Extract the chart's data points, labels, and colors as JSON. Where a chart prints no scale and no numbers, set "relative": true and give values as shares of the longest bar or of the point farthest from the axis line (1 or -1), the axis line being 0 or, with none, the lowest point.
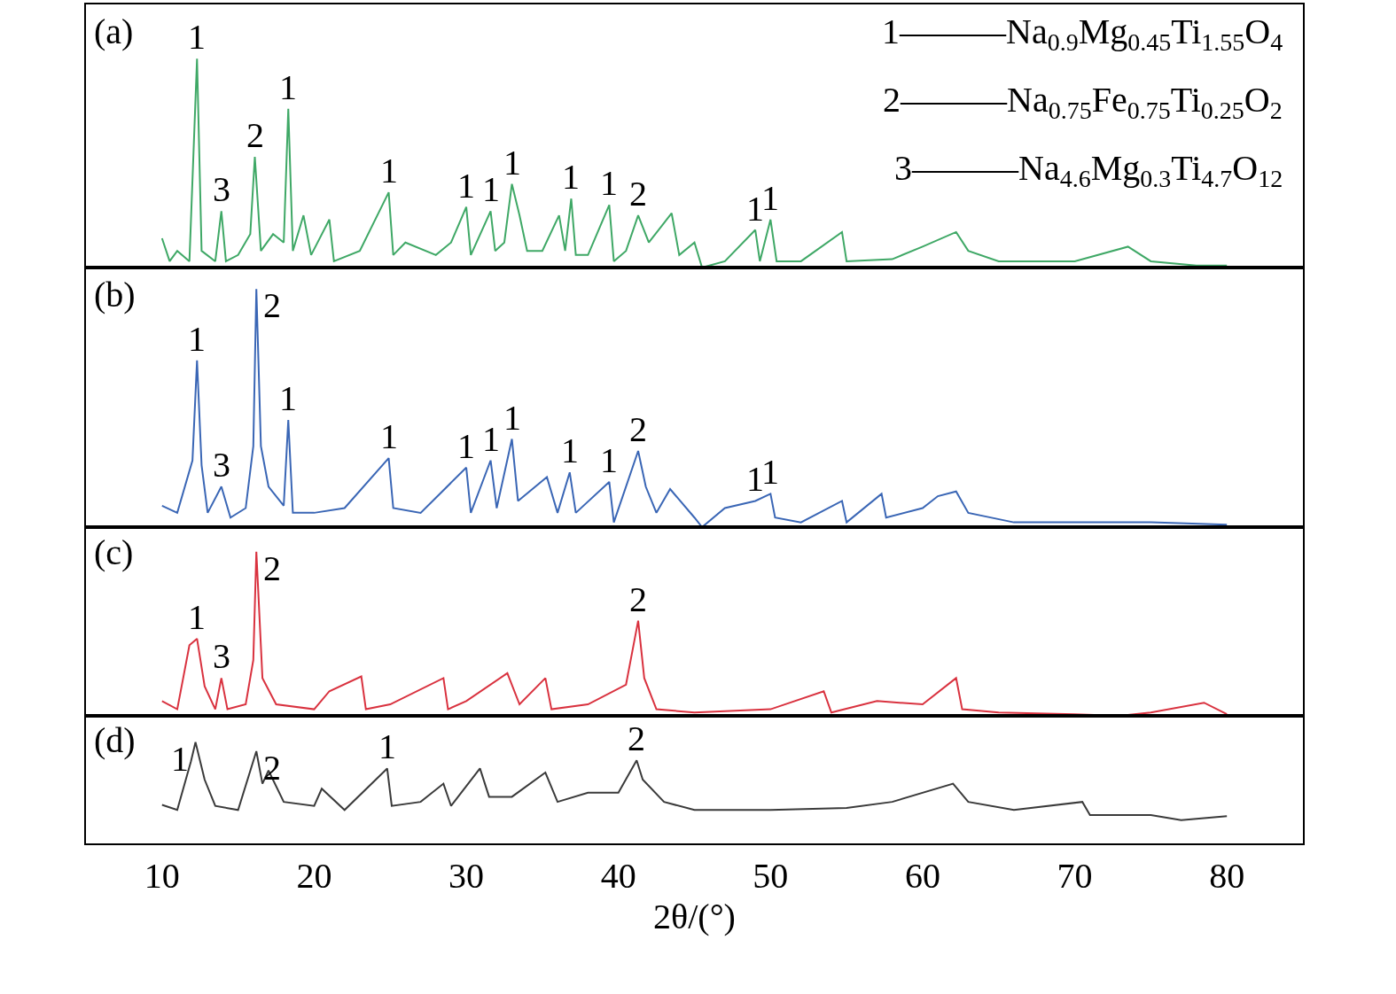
{
  "chart_data": [
    {
      "type": "line",
      "title": "(a)",
      "relative": true,
      "xlim": [
        5,
        85
      ],
      "xticks": [
        10,
        20,
        30,
        40,
        50,
        60,
        70,
        80
      ],
      "tick_labels": false,
      "grid": false,
      "x": [
        10,
        10.5,
        11,
        11.8,
        12.3,
        12.6,
        13.5,
        13.9,
        14.2,
        15,
        15.8,
        16.1,
        16.5,
        17.3,
        18,
        18.3,
        18.6,
        19.3,
        19.8,
        21,
        21.3,
        23,
        24.9,
        25.2,
        26,
        28,
        29,
        30,
        30.3,
        31.6,
        31.9,
        32.5,
        33,
        33.5,
        34,
        35,
        36.1,
        36.5,
        36.9,
        37.2,
        38,
        39.4,
        39.7,
        40.5,
        41.3,
        42,
        43.5,
        44,
        45,
        45.5,
        47,
        49,
        49.3,
        50,
        50.4,
        52,
        54.7,
        55,
        58,
        60,
        62.2,
        63,
        65,
        68,
        70,
        73.5,
        75,
        78,
        80
      ],
      "series": [
        {
          "color": "#3fa866",
          "values": [
            0.14,
            0.03,
            0.08,
            0.03,
            1.0,
            0.08,
            0.03,
            0.27,
            0.03,
            0.06,
            0.16,
            0.53,
            0.08,
            0.16,
            0.12,
            0.76,
            0.08,
            0.25,
            0.06,
            0.23,
            0.03,
            0.08,
            0.36,
            0.06,
            0.12,
            0.06,
            0.12,
            0.29,
            0.06,
            0.27,
            0.08,
            0.12,
            0.4,
            0.25,
            0.08,
            0.08,
            0.25,
            0.08,
            0.33,
            0.06,
            0.06,
            0.3,
            0.03,
            0.08,
            0.25,
            0.12,
            0.26,
            0.06,
            0.12,
            0,
            0.03,
            0.18,
            0.03,
            0.23,
            0.03,
            0.03,
            0.17,
            0.03,
            0.04,
            0.1,
            0.17,
            0.08,
            0.03,
            0.03,
            0.03,
            0.1,
            0.03,
            0.01,
            0.01
          ]
        }
      ],
      "annotations": [
        {
          "text": "1",
          "x": 12.3,
          "y": 1.0
        },
        {
          "text": "3",
          "x": 13.9,
          "y": 0.27
        },
        {
          "text": "2",
          "x": 16.1,
          "y": 0.53
        },
        {
          "text": "1",
          "x": 18.3,
          "y": 0.76
        },
        {
          "text": "1",
          "x": 24.9,
          "y": 0.36
        },
        {
          "text": "1",
          "x": 30,
          "y": 0.29
        },
        {
          "text": "1",
          "x": 31.6,
          "y": 0.27
        },
        {
          "text": "1",
          "x": 33,
          "y": 0.4
        },
        {
          "text": "1",
          "x": 36.9,
          "y": 0.33
        },
        {
          "text": "1",
          "x": 39.4,
          "y": 0.3
        },
        {
          "text": "2",
          "x": 41.3,
          "y": 0.25
        },
        {
          "text": "1",
          "x": 49,
          "y": 0.18
        },
        {
          "text": "1",
          "x": 50,
          "y": 0.23
        },
        "1———Na$_{0.9}$Mg$_{0.45}$Ti$_{1.55}$O$_{4}$",
        "2———Na$_{0.75}$Fe$_{0.75}$Ti$_{0.25}$O$_{2}$",
        "3———Na$_{4.6}$Mg$_{0.3}$Ti$_{4.7}$O$_{12}$"
      ]
    },
    {
      "type": "line",
      "title": "(b)",
      "relative": true,
      "xlim": [
        5,
        85
      ],
      "xticks": [
        10,
        20,
        30,
        40,
        50,
        60,
        70,
        80
      ],
      "tick_labels": false,
      "grid": false,
      "x": [
        10,
        11,
        12,
        12.3,
        12.6,
        13,
        13.9,
        14.5,
        15.5,
        16,
        16.2,
        16.5,
        17,
        18,
        18.3,
        18.6,
        20,
        22,
        24.9,
        25.2,
        27,
        30,
        30.3,
        31.6,
        32,
        33,
        33.4,
        35.3,
        36,
        36.8,
        37.2,
        39.4,
        39.7,
        41.3,
        41.8,
        42.5,
        43.4,
        45,
        45.5,
        47,
        49,
        50,
        50.3,
        52,
        54.7,
        55,
        57.3,
        57.6,
        60,
        61,
        62.2,
        63,
        66,
        70,
        75,
        80
      ],
      "series": [
        {
          "color": "#3a66b5",
          "values": [
            0.09,
            0.06,
            0.28,
            0.7,
            0.26,
            0.06,
            0.17,
            0.04,
            0.08,
            0.34,
            1.0,
            0.34,
            0.17,
            0.09,
            0.45,
            0.06,
            0.06,
            0.08,
            0.29,
            0.08,
            0.06,
            0.25,
            0.06,
            0.28,
            0.08,
            0.37,
            0.11,
            0.21,
            0.06,
            0.23,
            0.06,
            0.19,
            0.02,
            0.32,
            0.17,
            0.06,
            0.16,
            0.04,
            0,
            0.08,
            0.11,
            0.14,
            0.04,
            0.02,
            0.11,
            0.02,
            0.14,
            0.04,
            0.08,
            0.13,
            0.15,
            0.06,
            0.02,
            0.02,
            0.02,
            0.01
          ]
        }
      ],
      "annotations": [
        {
          "text": "1",
          "x": 12.3,
          "y": 0.7
        },
        {
          "text": "3",
          "x": 13.9,
          "y": 0.17
        },
        {
          "text": "2",
          "x": 16.2,
          "y": 1.0
        },
        {
          "text": "1",
          "x": 18.3,
          "y": 0.45
        },
        {
          "text": "1",
          "x": 24.9,
          "y": 0.29
        },
        {
          "text": "1",
          "x": 30,
          "y": 0.25
        },
        {
          "text": "1",
          "x": 31.6,
          "y": 0.28
        },
        {
          "text": "1",
          "x": 33,
          "y": 0.37
        },
        {
          "text": "1",
          "x": 36.8,
          "y": 0.23
        },
        {
          "text": "1",
          "x": 39.4,
          "y": 0.19
        },
        {
          "text": "2",
          "x": 41.3,
          "y": 0.32
        },
        {
          "text": "1",
          "x": 49,
          "y": 0.11
        },
        {
          "text": "1",
          "x": 50,
          "y": 0.14
        }
      ]
    },
    {
      "type": "line",
      "title": "(c)",
      "relative": true,
      "xlim": [
        5,
        85
      ],
      "xticks": [
        10,
        20,
        30,
        40,
        50,
        60,
        70,
        80
      ],
      "tick_labels": false,
      "grid": false,
      "x": [
        10,
        11,
        11.8,
        12.3,
        12.8,
        13.5,
        13.9,
        14.3,
        15.5,
        16,
        16.2,
        16.6,
        17.5,
        20,
        21,
        23.1,
        23.4,
        25,
        28.5,
        28.8,
        30,
        32.7,
        33.5,
        35.2,
        35.6,
        38,
        40.5,
        41.3,
        41.7,
        42.5,
        45,
        50,
        53.5,
        54,
        57,
        60,
        62.2,
        62.6,
        65,
        70,
        73,
        75,
        78.5,
        80
      ],
      "series": [
        {
          "color": "#d9323f",
          "values": [
            0.09,
            0.04,
            0.43,
            0.47,
            0.18,
            0.04,
            0.23,
            0.04,
            0.07,
            0.34,
            1.0,
            0.23,
            0.07,
            0.04,
            0.15,
            0.24,
            0.04,
            0.07,
            0.23,
            0.04,
            0.09,
            0.26,
            0.07,
            0.23,
            0.04,
            0.07,
            0.19,
            0.58,
            0.23,
            0.04,
            0.02,
            0.04,
            0.15,
            0.02,
            0.09,
            0.07,
            0.23,
            0.04,
            0.02,
            0.01,
            0,
            0.02,
            0.08,
            0.01
          ]
        }
      ],
      "annotations": [
        {
          "text": "1",
          "x": 12.3,
          "y": 0.47
        },
        {
          "text": "3",
          "x": 13.9,
          "y": 0.23
        },
        {
          "text": "2",
          "x": 16.2,
          "y": 1.0
        },
        {
          "text": "2",
          "x": 41.3,
          "y": 0.58
        }
      ]
    },
    {
      "type": "line",
      "title": "(d)",
      "relative": true,
      "xlim": [
        5,
        85
      ],
      "xticks": [
        10,
        20,
        30,
        40,
        50,
        60,
        70,
        80
      ],
      "tick_labels": "x",
      "grid": false,
      "xlabel": "2θ/(°)",
      "x": [
        10,
        11,
        11.9,
        12.2,
        12.8,
        13.5,
        15,
        16.2,
        16.6,
        17,
        18,
        20,
        20.5,
        22,
        24.8,
        25.1,
        27,
        28.5,
        29,
        30.9,
        31.5,
        33,
        35.2,
        36,
        38,
        40,
        41.2,
        41.6,
        43,
        45,
        50,
        55,
        58,
        62,
        63,
        66,
        70.5,
        71,
        75,
        77,
        80
      ],
      "series": [
        {
          "color": "#3a3a3a",
          "values": [
            0.38,
            0.33,
            0.81,
            1.0,
            0.63,
            0.37,
            0.33,
            0.91,
            0.59,
            0.72,
            0.41,
            0.37,
            0.54,
            0.33,
            0.74,
            0.37,
            0.41,
            0.59,
            0.37,
            0.74,
            0.46,
            0.46,
            0.7,
            0.41,
            0.5,
            0.5,
            0.82,
            0.63,
            0.41,
            0.33,
            0.33,
            0.35,
            0.41,
            0.59,
            0.41,
            0.33,
            0.41,
            0.28,
            0.28,
            0.23,
            0.27
          ]
        }
      ],
      "annotations": [
        {
          "text": "1",
          "x": 12.2,
          "y": 1.0
        },
        {
          "text": "2",
          "x": 16.2,
          "y": 0.91
        },
        {
          "text": "1",
          "x": 24.8,
          "y": 0.74
        },
        {
          "text": "2",
          "x": 41.2,
          "y": 0.82
        }
      ]
    }
  ]
}
